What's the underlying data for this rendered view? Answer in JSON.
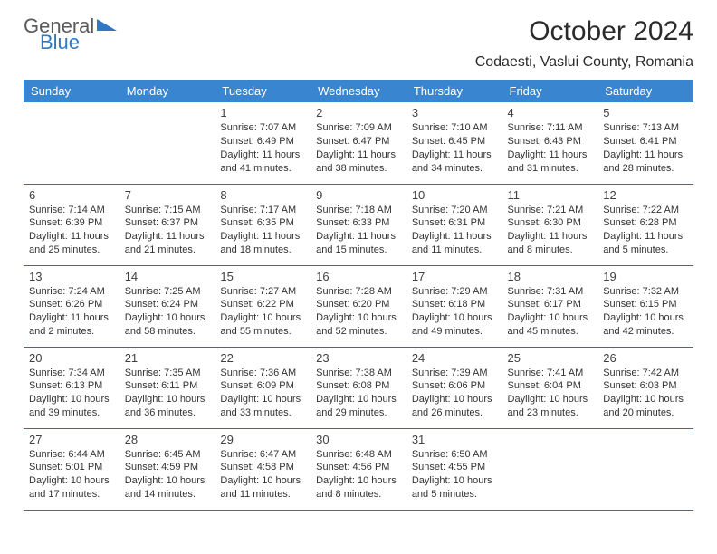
{
  "logo": {
    "line1": "General",
    "line2": "Blue",
    "tri_color": "#2f78c4"
  },
  "header_bg": "#3a85d0",
  "header_fg": "#ffffff",
  "row_border": "#3a6aa0",
  "title": "October 2024",
  "location": "Codaesti, Vaslui County, Romania",
  "weekdays": [
    "Sunday",
    "Monday",
    "Tuesday",
    "Wednesday",
    "Thursday",
    "Friday",
    "Saturday"
  ],
  "first_weekday_index": 2,
  "days": [
    {
      "n": 1,
      "sunrise": "7:07 AM",
      "sunset": "6:49 PM",
      "dl": "11 hours and 41 minutes."
    },
    {
      "n": 2,
      "sunrise": "7:09 AM",
      "sunset": "6:47 PM",
      "dl": "11 hours and 38 minutes."
    },
    {
      "n": 3,
      "sunrise": "7:10 AM",
      "sunset": "6:45 PM",
      "dl": "11 hours and 34 minutes."
    },
    {
      "n": 4,
      "sunrise": "7:11 AM",
      "sunset": "6:43 PM",
      "dl": "11 hours and 31 minutes."
    },
    {
      "n": 5,
      "sunrise": "7:13 AM",
      "sunset": "6:41 PM",
      "dl": "11 hours and 28 minutes."
    },
    {
      "n": 6,
      "sunrise": "7:14 AM",
      "sunset": "6:39 PM",
      "dl": "11 hours and 25 minutes."
    },
    {
      "n": 7,
      "sunrise": "7:15 AM",
      "sunset": "6:37 PM",
      "dl": "11 hours and 21 minutes."
    },
    {
      "n": 8,
      "sunrise": "7:17 AM",
      "sunset": "6:35 PM",
      "dl": "11 hours and 18 minutes."
    },
    {
      "n": 9,
      "sunrise": "7:18 AM",
      "sunset": "6:33 PM",
      "dl": "11 hours and 15 minutes."
    },
    {
      "n": 10,
      "sunrise": "7:20 AM",
      "sunset": "6:31 PM",
      "dl": "11 hours and 11 minutes."
    },
    {
      "n": 11,
      "sunrise": "7:21 AM",
      "sunset": "6:30 PM",
      "dl": "11 hours and 8 minutes."
    },
    {
      "n": 12,
      "sunrise": "7:22 AM",
      "sunset": "6:28 PM",
      "dl": "11 hours and 5 minutes."
    },
    {
      "n": 13,
      "sunrise": "7:24 AM",
      "sunset": "6:26 PM",
      "dl": "11 hours and 2 minutes."
    },
    {
      "n": 14,
      "sunrise": "7:25 AM",
      "sunset": "6:24 PM",
      "dl": "10 hours and 58 minutes."
    },
    {
      "n": 15,
      "sunrise": "7:27 AM",
      "sunset": "6:22 PM",
      "dl": "10 hours and 55 minutes."
    },
    {
      "n": 16,
      "sunrise": "7:28 AM",
      "sunset": "6:20 PM",
      "dl": "10 hours and 52 minutes."
    },
    {
      "n": 17,
      "sunrise": "7:29 AM",
      "sunset": "6:18 PM",
      "dl": "10 hours and 49 minutes."
    },
    {
      "n": 18,
      "sunrise": "7:31 AM",
      "sunset": "6:17 PM",
      "dl": "10 hours and 45 minutes."
    },
    {
      "n": 19,
      "sunrise": "7:32 AM",
      "sunset": "6:15 PM",
      "dl": "10 hours and 42 minutes."
    },
    {
      "n": 20,
      "sunrise": "7:34 AM",
      "sunset": "6:13 PM",
      "dl": "10 hours and 39 minutes."
    },
    {
      "n": 21,
      "sunrise": "7:35 AM",
      "sunset": "6:11 PM",
      "dl": "10 hours and 36 minutes."
    },
    {
      "n": 22,
      "sunrise": "7:36 AM",
      "sunset": "6:09 PM",
      "dl": "10 hours and 33 minutes."
    },
    {
      "n": 23,
      "sunrise": "7:38 AM",
      "sunset": "6:08 PM",
      "dl": "10 hours and 29 minutes."
    },
    {
      "n": 24,
      "sunrise": "7:39 AM",
      "sunset": "6:06 PM",
      "dl": "10 hours and 26 minutes."
    },
    {
      "n": 25,
      "sunrise": "7:41 AM",
      "sunset": "6:04 PM",
      "dl": "10 hours and 23 minutes."
    },
    {
      "n": 26,
      "sunrise": "7:42 AM",
      "sunset": "6:03 PM",
      "dl": "10 hours and 20 minutes."
    },
    {
      "n": 27,
      "sunrise": "6:44 AM",
      "sunset": "5:01 PM",
      "dl": "10 hours and 17 minutes."
    },
    {
      "n": 28,
      "sunrise": "6:45 AM",
      "sunset": "4:59 PM",
      "dl": "10 hours and 14 minutes."
    },
    {
      "n": 29,
      "sunrise": "6:47 AM",
      "sunset": "4:58 PM",
      "dl": "10 hours and 11 minutes."
    },
    {
      "n": 30,
      "sunrise": "6:48 AM",
      "sunset": "4:56 PM",
      "dl": "10 hours and 8 minutes."
    },
    {
      "n": 31,
      "sunrise": "6:50 AM",
      "sunset": "4:55 PM",
      "dl": "10 hours and 5 minutes."
    }
  ],
  "labels": {
    "sunrise": "Sunrise:",
    "sunset": "Sunset:",
    "daylight": "Daylight:"
  }
}
